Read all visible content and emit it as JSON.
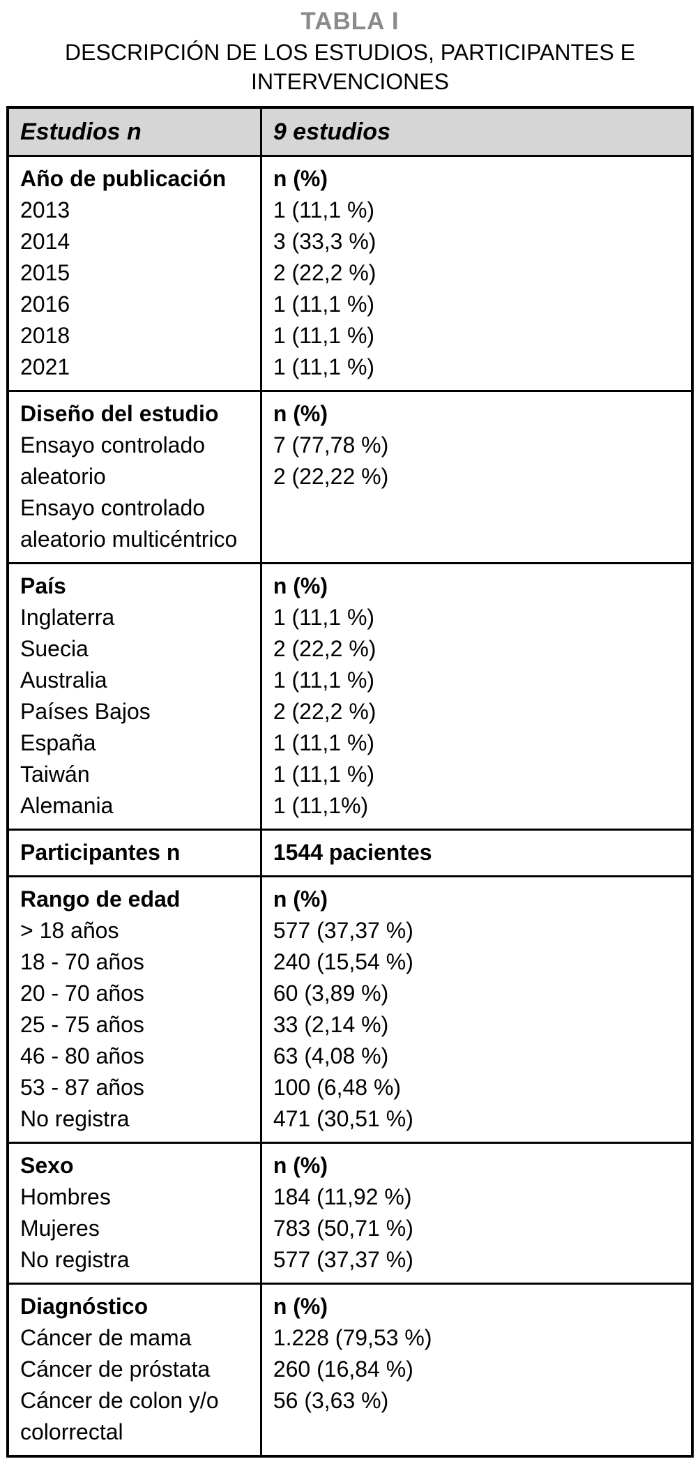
{
  "caption": {
    "label": "TABLA I",
    "title": "DESCRIPCIÓN DE LOS ESTUDIOS, PARTICIPANTES E INTERVENCIONES"
  },
  "header": {
    "col_left": "Estudios n",
    "col_right": "9 estudios"
  },
  "sections": [
    {
      "left": [
        "Año de publicación",
        "2013",
        "2014",
        "2015",
        "2016",
        "2018",
        "2021"
      ],
      "right": [
        "n (%)",
        "1 (11,1 %)",
        "3 (33,3 %)",
        "2 (22,2 %)",
        "1 (11,1 %)",
        "1 (11,1 %)",
        "1 (11,1 %)"
      ]
    },
    {
      "left": [
        "Diseño del estudio",
        "Ensayo controlado",
        "aleatorio",
        "Ensayo controlado",
        "aleatorio multicéntrico"
      ],
      "right": [
        "n (%)",
        "7 (77,78 %)",
        "2 (22,22 %)"
      ]
    },
    {
      "left": [
        "País",
        "Inglaterra",
        "Suecia",
        "Australia",
        "Países Bajos",
        "España",
        "Taiwán",
        "Alemania"
      ],
      "right": [
        "n (%)",
        "1 (11,1 %)",
        "2 (22,2 %)",
        "1 (11,1 %)",
        "2 (22,2 %)",
        "1 (11,1 %)",
        "1 (11,1 %)",
        "1 (11,1%)"
      ]
    },
    {
      "left": [
        "Participantes n"
      ],
      "right": [
        "1544 pacientes"
      ]
    },
    {
      "left": [
        "Rango de edad",
        "> 18 años",
        "18 - 70 años",
        "20 - 70 años",
        "25 - 75 años",
        "46 - 80 años",
        "53 - 87 años",
        "No registra"
      ],
      "right": [
        "n (%)",
        "577 (37,37 %)",
        "240 (15,54 %)",
        "60 (3,89 %)",
        "33 (2,14 %)",
        "63 (4,08 %)",
        "100 (6,48 %)",
        "471 (30,51 %)"
      ]
    },
    {
      "left": [
        "Sexo",
        "Hombres",
        "Mujeres",
        "No registra"
      ],
      "right": [
        "n (%)",
        "184 (11,92 %)",
        "783 (50,71 %)",
        "577 (37,37 %)"
      ]
    },
    {
      "left": [
        "Diagnóstico",
        "Cáncer de mama",
        "Cáncer de próstata",
        "Cáncer de colon y/o",
        "colorrectal"
      ],
      "right": [
        "n (%)",
        "1.228 (79,53 %)",
        "260 (16,84 %)",
        "56 (3,63 %)"
      ]
    }
  ],
  "colors": {
    "table_label": "#8a8a8a",
    "header_bg": "#d6d6d6",
    "border": "#000000"
  }
}
